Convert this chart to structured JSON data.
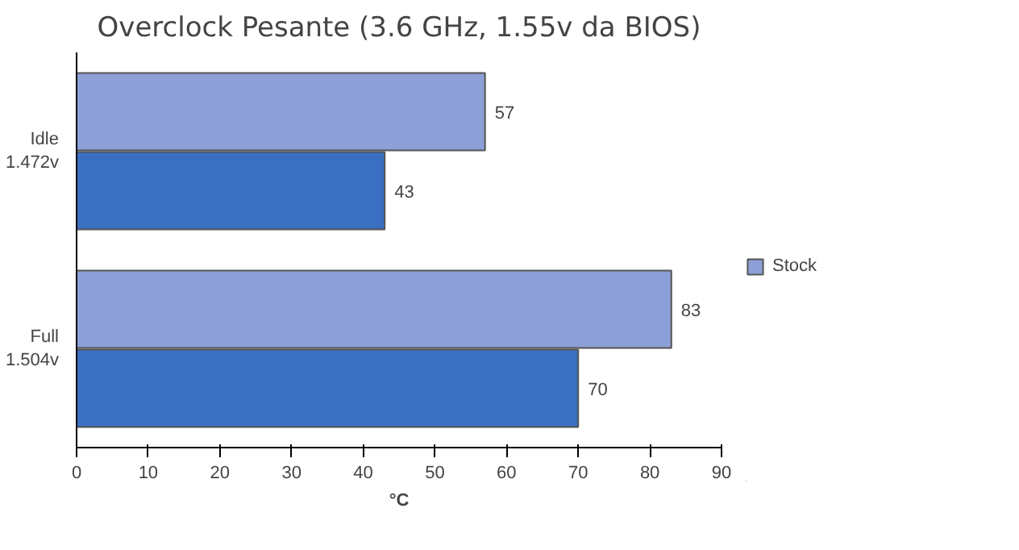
{
  "chart_data": {
    "type": "bar",
    "orientation": "horizontal",
    "title": "Overclock Pesante (3.6 GHz, 1.55v da BIOS)",
    "xlabel": "°C",
    "categories": [
      "Idle\n1.472v",
      "Full\n1.504v"
    ],
    "series": [
      {
        "name": "Stock",
        "color": "#8c9fd6",
        "values": [
          57,
          83
        ]
      },
      {
        "color": "#3b6fc1",
        "values": [
          43,
          70
        ]
      }
    ],
    "xlim": [
      0,
      90
    ],
    "xticks": [
      0,
      10,
      20,
      30,
      40,
      50,
      60,
      70,
      80,
      90
    ],
    "data_labels": true,
    "legend": "right",
    "grid": false
  }
}
